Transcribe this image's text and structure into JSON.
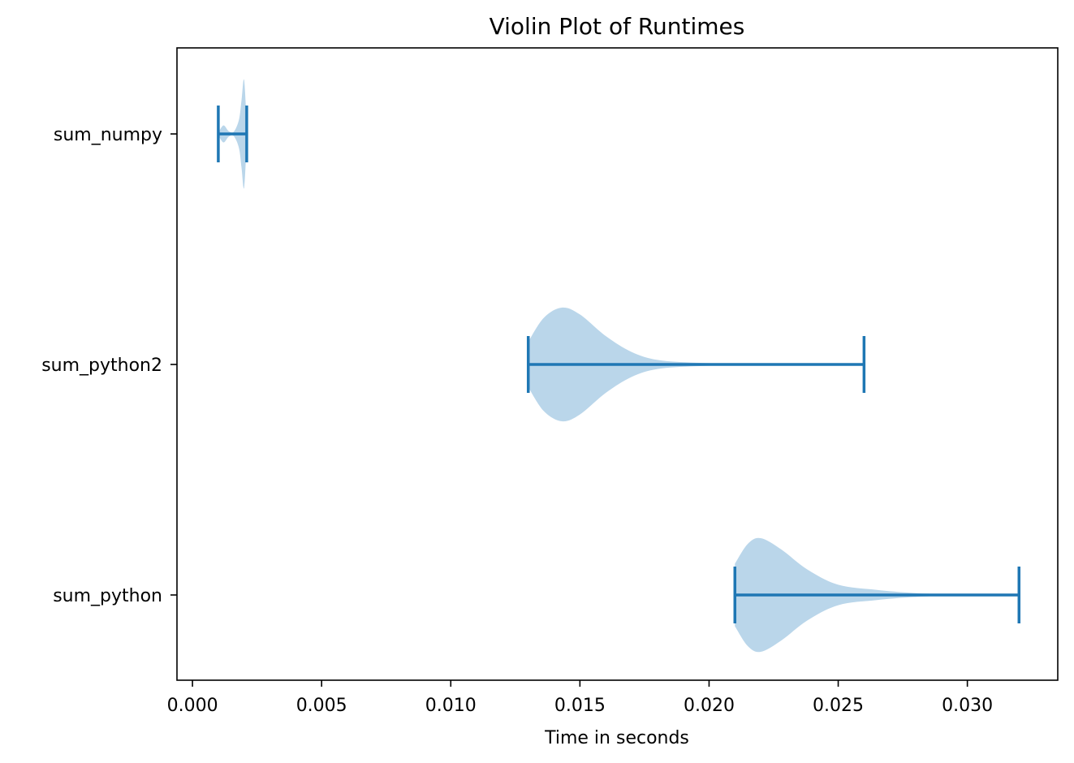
{
  "chart_data": {
    "type": "violin",
    "orientation": "horizontal",
    "title": "Violin Plot of Runtimes",
    "xlabel": "Time in seconds",
    "ylabel": "",
    "xlim": [
      -0.0006,
      0.0335
    ],
    "xticks": [
      0.0,
      0.005,
      0.01,
      0.015,
      0.02,
      0.025,
      0.03
    ],
    "xtick_labels": [
      "0.000",
      "0.005",
      "0.010",
      "0.015",
      "0.020",
      "0.025",
      "0.030"
    ],
    "categories": [
      "sum_numpy",
      "sum_python2",
      "sum_python"
    ],
    "series": [
      {
        "name": "sum_numpy",
        "min": 0.001,
        "max": 0.0021,
        "density": [
          [
            0.001,
            0.02
          ],
          [
            0.0012,
            0.15
          ],
          [
            0.0014,
            0.05
          ],
          [
            0.0016,
            0.04
          ],
          [
            0.0018,
            0.25
          ],
          [
            0.0019,
            0.6
          ],
          [
            0.002,
            0.95
          ],
          [
            0.0021,
            0.15
          ]
        ]
      },
      {
        "name": "sum_python2",
        "min": 0.013,
        "max": 0.026,
        "density": [
          [
            0.013,
            0.4
          ],
          [
            0.0136,
            0.82
          ],
          [
            0.0143,
            1.0
          ],
          [
            0.015,
            0.88
          ],
          [
            0.016,
            0.5
          ],
          [
            0.017,
            0.22
          ],
          [
            0.018,
            0.08
          ],
          [
            0.0195,
            0.03
          ],
          [
            0.0215,
            0.012
          ],
          [
            0.024,
            0.005
          ],
          [
            0.026,
            0.0
          ]
        ]
      },
      {
        "name": "sum_python",
        "min": 0.021,
        "max": 0.032,
        "density": [
          [
            0.021,
            0.55
          ],
          [
            0.0215,
            0.9
          ],
          [
            0.022,
            1.0
          ],
          [
            0.0228,
            0.8
          ],
          [
            0.0238,
            0.45
          ],
          [
            0.025,
            0.18
          ],
          [
            0.0265,
            0.09
          ],
          [
            0.0278,
            0.04
          ],
          [
            0.029,
            0.015
          ],
          [
            0.0305,
            0.005
          ],
          [
            0.032,
            0.0
          ]
        ]
      }
    ],
    "colors": {
      "body": "#bad6ea",
      "lines": "#1f77b4"
    },
    "grid": false,
    "legend": "none"
  }
}
